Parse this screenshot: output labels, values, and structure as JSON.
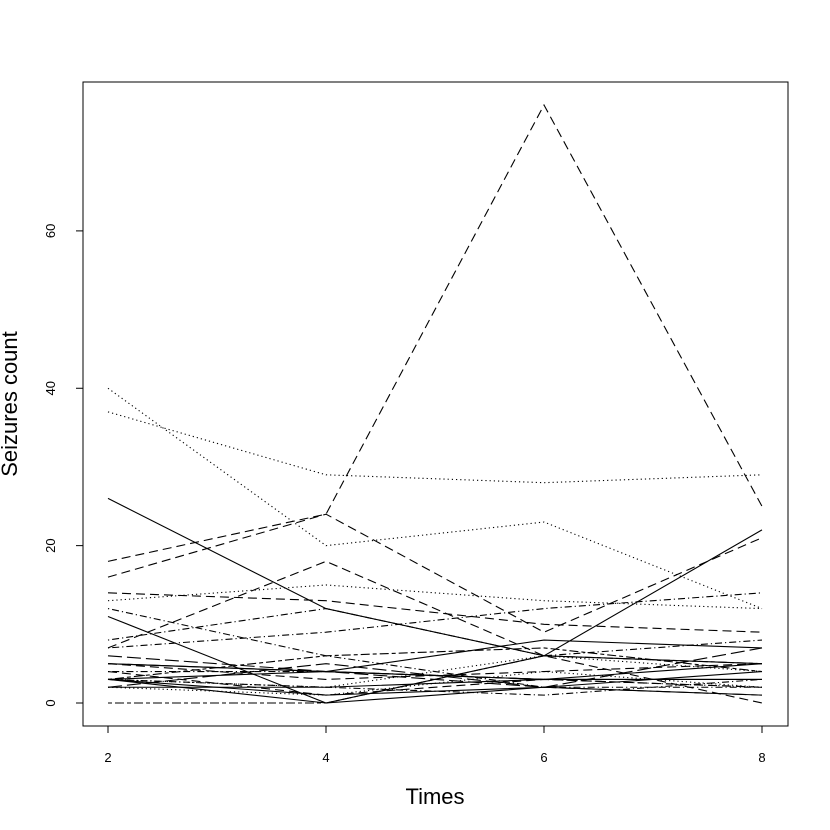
{
  "chart_data": {
    "type": "line",
    "title": "",
    "xlabel": "Times",
    "ylabel": "Seizures count",
    "x": [
      2,
      4,
      6,
      8
    ],
    "xlim": [
      2,
      8
    ],
    "ylim": [
      0,
      76
    ],
    "x_ticks": [
      2,
      4,
      6,
      8
    ],
    "y_ticks": [
      0,
      20,
      40,
      60
    ],
    "grid": false,
    "legend": "none",
    "series": [
      {
        "style": "solid",
        "values": [
          26,
          12,
          6,
          22
        ]
      },
      {
        "style": "solid",
        "values": [
          11,
          0,
          6,
          5
        ]
      },
      {
        "style": "solid",
        "values": [
          5,
          4,
          8,
          7
        ]
      },
      {
        "style": "solid",
        "values": [
          5,
          4,
          3,
          3
        ]
      },
      {
        "style": "solid",
        "values": [
          3,
          4,
          3,
          3
        ]
      },
      {
        "style": "solid",
        "values": [
          3,
          1,
          2,
          1
        ]
      },
      {
        "style": "solid",
        "values": [
          2,
          2,
          3,
          5
        ]
      },
      {
        "style": "solid",
        "values": [
          3,
          0,
          2,
          4
        ]
      },
      {
        "style": "dashed",
        "values": [
          18,
          24,
          76,
          25
        ]
      },
      {
        "style": "dashed",
        "values": [
          16,
          24,
          9,
          21
        ]
      },
      {
        "style": "dashed",
        "values": [
          14,
          13,
          10,
          9
        ]
      },
      {
        "style": "dashed",
        "values": [
          7,
          18,
          6,
          0
        ]
      },
      {
        "style": "dashed",
        "values": [
          4,
          1,
          3,
          2
        ]
      },
      {
        "style": "dashed",
        "values": [
          5,
          3,
          4,
          5
        ]
      },
      {
        "style": "dotted",
        "values": [
          40,
          20,
          23,
          12
        ]
      },
      {
        "style": "dotted",
        "values": [
          37,
          29,
          28,
          29
        ]
      },
      {
        "style": "dotted",
        "values": [
          13,
          15,
          13,
          12
        ]
      },
      {
        "style": "dotted",
        "values": [
          3,
          2,
          6,
          4
        ]
      },
      {
        "style": "dotted",
        "values": [
          2,
          1,
          4,
          2
        ]
      },
      {
        "style": "dotdash",
        "values": [
          8,
          12,
          6,
          8
        ]
      },
      {
        "style": "dotdash",
        "values": [
          7,
          9,
          12,
          14
        ]
      },
      {
        "style": "dotdash",
        "values": [
          12,
          6,
          2,
          2
        ]
      },
      {
        "style": "dotdash",
        "values": [
          4,
          4,
          3,
          2
        ]
      },
      {
        "style": "dotdash",
        "values": [
          3,
          2,
          1,
          3
        ]
      },
      {
        "style": "longdash",
        "values": [
          6,
          4,
          2,
          7
        ]
      },
      {
        "style": "longdash",
        "values": [
          2,
          5,
          2,
          1
        ]
      },
      {
        "style": "twodash",
        "values": [
          0,
          0,
          6,
          5
        ]
      },
      {
        "style": "twodash",
        "values": [
          3,
          6,
          7,
          4
        ]
      }
    ]
  }
}
